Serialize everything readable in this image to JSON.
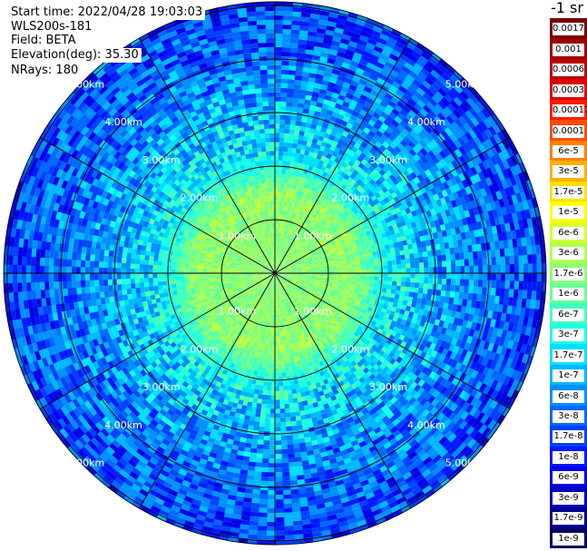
{
  "info": {
    "start_time": "Start time: 2022/04/28 19:03:03",
    "instrument": "WLS200s-181",
    "field": "Field: BETA",
    "elevation": "Elevation(deg): 35.30",
    "nrays": "NRays: 180"
  },
  "colorbar": {
    "unit": "-1 sr",
    "entries": [
      {
        "label": "0.0017",
        "color": "#7a0000"
      },
      {
        "label": "0.001",
        "color": "#9c0000"
      },
      {
        "label": "0.0006",
        "color": "#bb0000"
      },
      {
        "label": "0.0003",
        "color": "#de0000"
      },
      {
        "label": "0.00017",
        "color": "#ff1a00"
      },
      {
        "label": "0.0001",
        "color": "#ff4c00"
      },
      {
        "label": "6e-5",
        "color": "#ff8000"
      },
      {
        "label": "3e-5",
        "color": "#ffb000"
      },
      {
        "label": "1.7e-5",
        "color": "#ffe000"
      },
      {
        "label": "1e-5",
        "color": "#ffff00"
      },
      {
        "label": "6e-6",
        "color": "#d6ff29"
      },
      {
        "label": "3e-6",
        "color": "#b0ff4f"
      },
      {
        "label": "1.7e-6",
        "color": "#8cff73"
      },
      {
        "label": "1e-6",
        "color": "#66ff99"
      },
      {
        "label": "6e-7",
        "color": "#40ffbf"
      },
      {
        "label": "3e-7",
        "color": "#1affe6"
      },
      {
        "label": "1.7e-7",
        "color": "#00e0ff"
      },
      {
        "label": "1e-7",
        "color": "#00b8ff"
      },
      {
        "label": "6e-8",
        "color": "#0090ff"
      },
      {
        "label": "3e-8",
        "color": "#0068ff"
      },
      {
        "label": "1.7e-8",
        "color": "#0040ff"
      },
      {
        "label": "1e-8",
        "color": "#0018ff"
      },
      {
        "label": "6e-9",
        "color": "#0000e6"
      },
      {
        "label": "3e-9",
        "color": "#0000bb"
      },
      {
        "label": "1.7e-9",
        "color": "#000090"
      },
      {
        "label": "1e-9",
        "color": "#000066"
      }
    ]
  },
  "chart_data": {
    "type": "heatmap",
    "projection": "polar (PPI scan)",
    "field": "BETA",
    "scale": "log",
    "color_range": [
      1e-09,
      0.0017
    ],
    "range_rings_km": [
      1,
      2,
      3,
      4,
      5
    ],
    "range_labels": [
      "1.00km",
      "2.00km",
      "3.00km",
      "4.00km",
      "5.00km"
    ],
    "max_range_km": 5.0,
    "spokes_deg": [
      0,
      30,
      60,
      90,
      120,
      150,
      180,
      210,
      240,
      270,
      300,
      330
    ],
    "beta_profile": [
      {
        "range_km": 0.5,
        "beta": 1.7e-06
      },
      {
        "range_km": 1.0,
        "beta": 1.7e-06
      },
      {
        "range_km": 1.5,
        "beta": 2e-06
      },
      {
        "range_km": 2.0,
        "beta": 3e-07
      },
      {
        "range_km": 2.5,
        "beta": 1.7e-07
      },
      {
        "range_km": 3.0,
        "beta": 1e-07
      },
      {
        "range_km": 3.5,
        "beta": 6e-08
      },
      {
        "range_km": 4.0,
        "beta": 4e-08
      },
      {
        "range_km": 4.5,
        "beta": 3e-08
      },
      {
        "range_km": 5.0,
        "beta": 2e-08
      }
    ]
  }
}
